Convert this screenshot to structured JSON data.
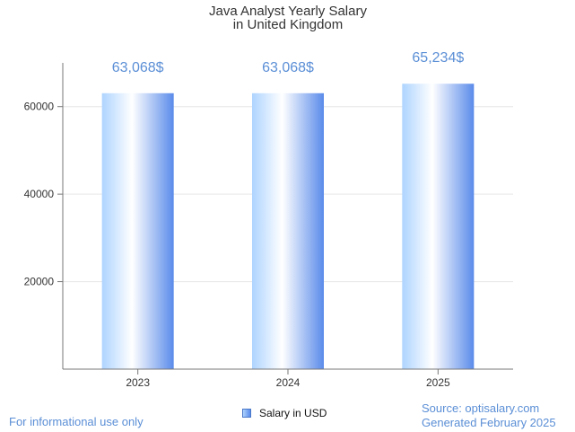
{
  "chart_data": {
    "type": "bar",
    "title_lines": [
      "Java Analyst Yearly Salary",
      "in United Kingdom"
    ],
    "categories": [
      "2023",
      "2024",
      "2025"
    ],
    "series": [
      {
        "name": "Salary in USD",
        "values": [
          63068,
          63068,
          65234
        ]
      }
    ],
    "data_labels": [
      "63,068$",
      "63,068$",
      "65,234$"
    ],
    "yticks": [
      20000,
      40000,
      60000
    ],
    "ytick_labels": [
      "20000",
      "40000",
      "60000"
    ],
    "ylim": [
      0,
      70000
    ],
    "xlabel": "",
    "ylabel": "",
    "grid": true,
    "legend_position": "bottom-center"
  },
  "colors": {
    "bar_light": "#aed4ff",
    "bar_highlight": "#ffffff",
    "bar_dark": "#5a8bea",
    "label": "#5b8fd6",
    "grid": "#e6e6e6",
    "axis": "#777777"
  },
  "footer": {
    "disclaimer": "For informational use only",
    "source": "Source: optisalary.com",
    "generated": "Generated February 2025"
  }
}
